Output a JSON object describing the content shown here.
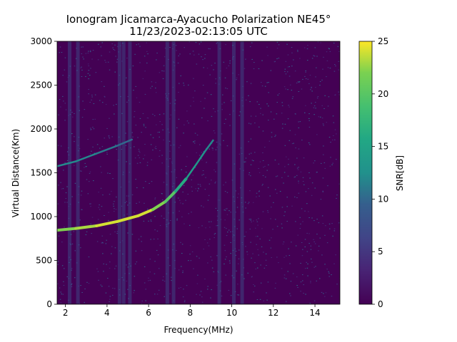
{
  "chart_data": {
    "type": "heatmap",
    "title": "Ionogram Jicamarca-Ayacucho Polarization NE45°",
    "subtitle": "11/23/2023-02:13:05 UTC",
    "xlabel": "Frequency(MHz)",
    "ylabel": "Virtual Distance(Km)",
    "xlim": [
      1.6,
      15.2
    ],
    "ylim": [
      0,
      3000
    ],
    "xticks": [
      2,
      4,
      6,
      8,
      10,
      12,
      14
    ],
    "yticks": [
      0,
      500,
      1000,
      1500,
      2000,
      2500,
      3000
    ],
    "colorbar": {
      "label": "SNR[dB]",
      "range": [
        0,
        25
      ],
      "ticks": [
        0,
        5,
        10,
        15,
        20,
        25
      ],
      "colormap": "viridis"
    },
    "traces": [
      {
        "points": [
          [
            1.6,
            845
          ],
          [
            2.5,
            865
          ],
          [
            3.5,
            895
          ],
          [
            4.5,
            945
          ],
          [
            5.5,
            1010
          ],
          [
            6.2,
            1080
          ],
          [
            6.8,
            1170
          ],
          [
            7.3,
            1290
          ],
          [
            7.8,
            1430
          ],
          [
            8.3,
            1600
          ],
          [
            8.7,
            1740
          ],
          [
            9.1,
            1870
          ]
        ],
        "snr": [
          22,
          23,
          24,
          24,
          24,
          22,
          20,
          16,
          14,
          13,
          12,
          11
        ]
      },
      {
        "points": [
          [
            1.6,
            1575
          ],
          [
            2.5,
            1630
          ],
          [
            3.5,
            1720
          ],
          [
            4.5,
            1810
          ],
          [
            5.2,
            1880
          ]
        ],
        "snr": [
          12,
          12,
          11,
          10,
          9
        ]
      }
    ],
    "vertical_bands_mhz": [
      2.2,
      2.6,
      4.6,
      4.8,
      5.1,
      6.9,
      7.2,
      9.4,
      10.1,
      10.5
    ]
  }
}
